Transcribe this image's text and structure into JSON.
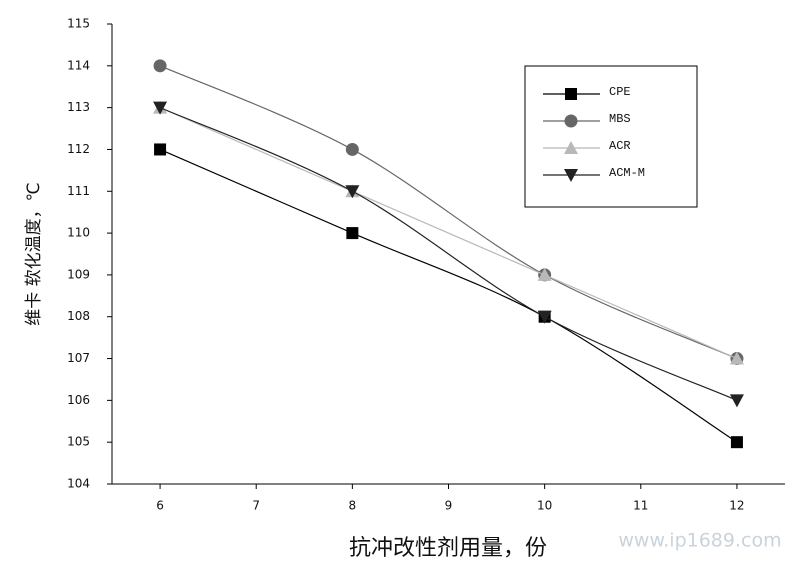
{
  "chart_data": {
    "type": "line",
    "x_label": "抗冲改性剂用量，份",
    "y_label": "维卡 软化温度，℃",
    "watermark": "www.ip1689.com",
    "x": [
      6,
      8,
      10,
      12
    ],
    "series": [
      {
        "name": "CPE",
        "color": "#000000",
        "marker": "square",
        "values": [
          112,
          110,
          108,
          105
        ]
      },
      {
        "name": "MBS",
        "color": "#666666",
        "marker": "circle",
        "values": [
          114,
          112,
          109,
          107
        ]
      },
      {
        "name": "ACR",
        "color": "#b8b8b8",
        "marker": "triangle-up",
        "values": [
          113,
          111,
          109,
          107
        ]
      },
      {
        "name": "ACM-M",
        "color": "#222222",
        "marker": "triangle-down",
        "values": [
          113,
          111,
          108,
          106
        ]
      }
    ],
    "xlim": [
      5.5,
      12.5
    ],
    "xticks": [
      6,
      7,
      8,
      9,
      10,
      11,
      12
    ],
    "ylim": [
      104,
      115
    ],
    "yticks": [
      104,
      105,
      106,
      107,
      108,
      109,
      110,
      111,
      112,
      113,
      114,
      115
    ]
  }
}
